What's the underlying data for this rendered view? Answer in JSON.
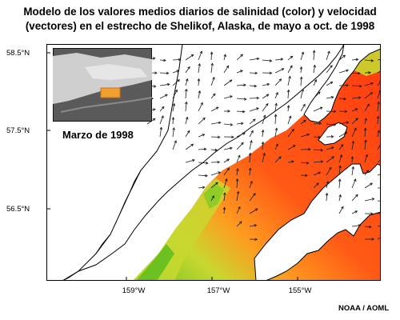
{
  "title": {
    "line1": "Modelo de los valores medios diarios de salinidad (color) y velocidad",
    "line2": "(vectores) en el estrecho de Shelikof, Alaska, de mayo a oct. de 1998"
  },
  "axes": {
    "y_ticks": [
      "58.5°N",
      "57.5°N",
      "56.5°N"
    ],
    "x_ticks": [
      "159°W",
      "157°W",
      "155°W"
    ]
  },
  "inset": {
    "caption": "Marzo de 1998",
    "highlight_color": "#f0a030"
  },
  "credit": "NOAA / AOML",
  "colors": {
    "land": "#ffffff",
    "coastline": "#000000",
    "salinity_high": "#ff3b10",
    "salinity_mid": "#ff8a20",
    "salinity_low": "#c8d830",
    "salinity_lowest": "#6cc020",
    "vectors": "#1a1a1a"
  }
}
